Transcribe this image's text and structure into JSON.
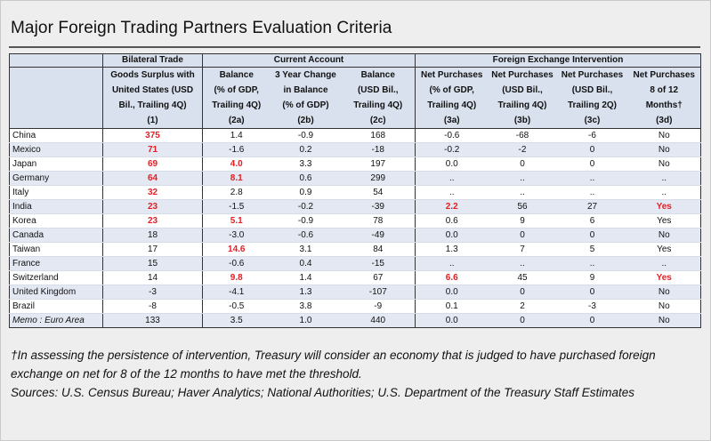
{
  "title": "Major Foreign Trading Partners Evaluation Criteria",
  "groups": {
    "bilateral": "Bilateral Trade",
    "current": "Current Account",
    "fx": "Foreign Exchange Intervention"
  },
  "columns": [
    [
      "Goods Surplus with",
      "United States (USD",
      "Bil., Trailing 4Q)",
      "(1)"
    ],
    [
      "Balance",
      "(% of GDP,",
      "Trailing 4Q)",
      "(2a)"
    ],
    [
      "3 Year Change",
      "in Balance",
      "(% of GDP)",
      "(2b)"
    ],
    [
      "Balance",
      "(USD Bil.,",
      "Trailing 4Q)",
      "(2c)"
    ],
    [
      "Net Purchases",
      "(% of GDP,",
      "Trailing 4Q)",
      "(3a)"
    ],
    [
      "Net Purchases",
      "(USD Bil.,",
      "Trailing 4Q)",
      "(3b)"
    ],
    [
      "Net Purchases",
      "(USD Bil.,",
      "Trailing 2Q)",
      "(3c)"
    ],
    [
      "Net Purchases",
      "8 of 12",
      "Months†",
      "(3d)"
    ]
  ],
  "rows": [
    {
      "name": "China",
      "v": [
        "375",
        "1.4",
        "-0.9",
        "168",
        "-0.6",
        "-68",
        "-6",
        "No"
      ],
      "red": [
        0
      ]
    },
    {
      "name": "Mexico",
      "v": [
        "71",
        "-1.6",
        "0.2",
        "-18",
        "-0.2",
        "-2",
        "0",
        "No"
      ],
      "red": [
        0
      ]
    },
    {
      "name": "Japan",
      "v": [
        "69",
        "4.0",
        "3.3",
        "197",
        "0.0",
        "0",
        "0",
        "No"
      ],
      "red": [
        0,
        1
      ]
    },
    {
      "name": "Germany",
      "v": [
        "64",
        "8.1",
        "0.6",
        "299",
        "..",
        "..",
        "..",
        ".."
      ],
      "red": [
        0,
        1
      ]
    },
    {
      "name": "Italy",
      "v": [
        "32",
        "2.8",
        "0.9",
        "54",
        "..",
        "..",
        "..",
        ".."
      ],
      "red": [
        0
      ]
    },
    {
      "name": "India",
      "v": [
        "23",
        "-1.5",
        "-0.2",
        "-39",
        "2.2",
        "56",
        "27",
        "Yes"
      ],
      "red": [
        0,
        4,
        7
      ]
    },
    {
      "name": "Korea",
      "v": [
        "23",
        "5.1",
        "-0.9",
        "78",
        "0.6",
        "9",
        "6",
        "Yes"
      ],
      "red": [
        0,
        1
      ]
    },
    {
      "name": "Canada",
      "v": [
        "18",
        "-3.0",
        "-0.6",
        "-49",
        "0.0",
        "0",
        "0",
        "No"
      ],
      "red": []
    },
    {
      "name": "Taiwan",
      "v": [
        "17",
        "14.6",
        "3.1",
        "84",
        "1.3",
        "7",
        "5",
        "Yes"
      ],
      "red": [
        1
      ]
    },
    {
      "name": "France",
      "v": [
        "15",
        "-0.6",
        "0.4",
        "-15",
        "..",
        "..",
        "..",
        ".."
      ],
      "red": []
    },
    {
      "name": "Switzerland",
      "v": [
        "14",
        "9.8",
        "1.4",
        "67",
        "6.6",
        "45",
        "9",
        "Yes"
      ],
      "red": [
        1,
        4,
        7
      ]
    },
    {
      "name": "United Kingdom",
      "v": [
        "-3",
        "-4.1",
        "1.3",
        "-107",
        "0.0",
        "0",
        "0",
        "No"
      ],
      "red": []
    },
    {
      "name": "Brazil",
      "v": [
        "-8",
        "-0.5",
        "3.8",
        "-9",
        "0.1",
        "2",
        "-3",
        "No"
      ],
      "red": []
    }
  ],
  "memo": {
    "name": "Memo : Euro Area",
    "v": [
      "133",
      "3.5",
      "1.0",
      "440",
      "0.0",
      "0",
      "0",
      "No"
    ]
  },
  "footnote": "†In assessing the persistence of intervention, Treasury will consider an economy that is judged to have purchased foreign exchange on net for 8 of the 12 months to have met the threshold.",
  "sources": "Sources: U.S. Census Bureau; Haver Analytics; National Authorities; U.S. Department of the Treasury Staff Estimates",
  "colors": {
    "highlight": "#e31e24",
    "header_bg": "#d9e1ee",
    "row_alt": "#e3e8f2"
  }
}
